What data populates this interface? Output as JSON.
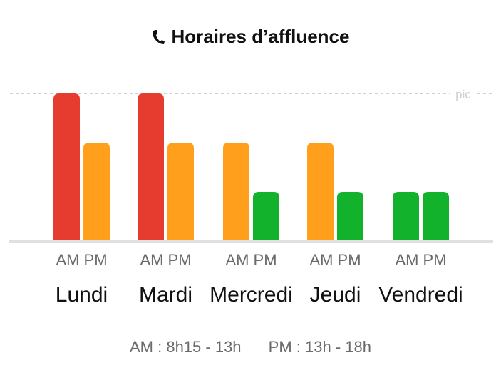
{
  "title": "Horaires d’affluence",
  "icon": "phone-icon",
  "peak_label": "pic",
  "legend": {
    "am": "AM : 8h15 - 13h",
    "pm": "PM : 13h - 18h"
  },
  "colors": {
    "high": "#e63c2f",
    "medium": "#ff9f1c",
    "low": "#13b22d",
    "baseline": "#e0e0e0",
    "peak_line": "#d0d0d0"
  },
  "chart_data": {
    "type": "bar",
    "categories": [
      "Lundi",
      "Mardi",
      "Mercredi",
      "Jeudi",
      "Vendredi"
    ],
    "sub_labels": [
      "AM",
      "PM"
    ],
    "series": [
      {
        "name": "AM",
        "values": [
          3,
          3,
          2,
          2,
          1
        ],
        "levels": [
          "high",
          "high",
          "medium",
          "medium",
          "low"
        ]
      },
      {
        "name": "PM",
        "values": [
          2,
          2,
          1,
          1,
          1
        ],
        "levels": [
          "medium",
          "medium",
          "low",
          "low",
          "low"
        ]
      }
    ],
    "ylim": [
      0,
      3
    ],
    "grid": false
  }
}
